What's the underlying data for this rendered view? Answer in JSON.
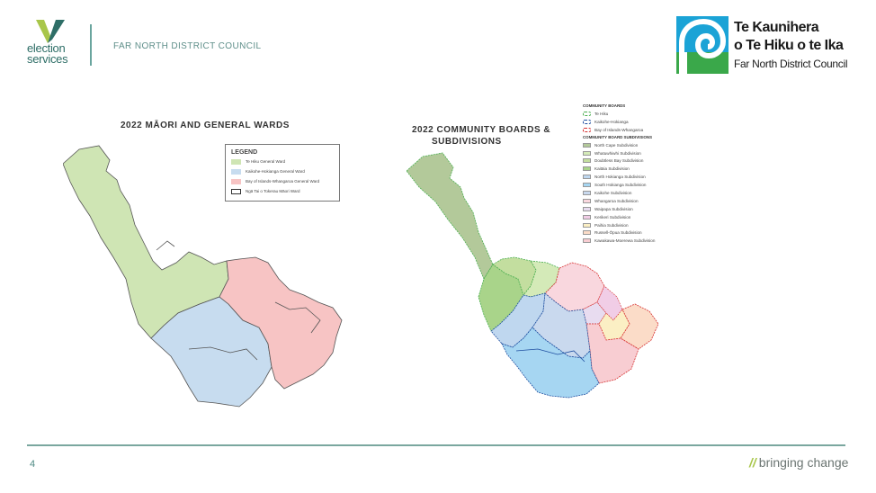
{
  "header": {
    "logo_text": "election\nservices",
    "council_name": "FAR NORTH DISTRICT COUNCIL",
    "fndc_line1": "Te Kaunihera",
    "fndc_line2": "o Te Hiku o te Ika",
    "fndc_line3": "Far North District Council"
  },
  "map1": {
    "title": "2022 MĀORI AND GENERAL WARDS",
    "legend_title": "LEGEND",
    "legend": [
      {
        "label": "Te Hiku General Ward",
        "color": "#cfe5b4"
      },
      {
        "label": "Kaikohe-Hokianga General Ward",
        "color": "#c7dcef"
      },
      {
        "label": "Bay of Islands-Whangaroa General Ward",
        "color": "#f7c4c4"
      },
      {
        "label": "Ngā Tai o Tokerau Māori Ward",
        "color": "#ffffff"
      }
    ]
  },
  "map2": {
    "title_line1": "2022 COMMUNITY BOARDS &",
    "title_line2": "SUBDIVISIONS",
    "boards_heading": "COMMUNITY BOARDS",
    "boards": [
      {
        "label": "Te Hiku",
        "color": "#4caf50"
      },
      {
        "label": "Kaikohe-Hokianga",
        "color": "#1f4fa0"
      },
      {
        "label": "Bay of Islands-Whangaroa",
        "color": "#d63030"
      }
    ],
    "subdivisions_heading": "COMMUNITY BOARD SUBDIVISIONS",
    "subdivisions": [
      {
        "label": "North Cape Subdivision",
        "color": "#b3c99a"
      },
      {
        "label": "Whatuwhiwhi Subdivision",
        "color": "#d4eab8"
      },
      {
        "label": "Doubtless Bay Subdivision",
        "color": "#c3de9f"
      },
      {
        "label": "Kaitāia Subdivision",
        "color": "#a9d48a"
      },
      {
        "label": "North Hokianga Subdivision",
        "color": "#bfd7ef"
      },
      {
        "label": "South Hokianga Subdivision",
        "color": "#a6d6f2"
      },
      {
        "label": "Kaikohe Subdivision",
        "color": "#c9d9ee"
      },
      {
        "label": "Whangaroa Subdivision",
        "color": "#f9d7de"
      },
      {
        "label": "Waipapa Subdivision",
        "color": "#e8dcf0"
      },
      {
        "label": "Kerikeri Subdivision",
        "color": "#f1cde6"
      },
      {
        "label": "Paihia Subdivision",
        "color": "#fbefc4"
      },
      {
        "label": "Russell-Ōpua Subdivision",
        "color": "#fbdcc8"
      },
      {
        "label": "Kawakawa-Moerewa Subdivision",
        "color": "#f8cdd2"
      }
    ]
  },
  "footer": {
    "page_number": "4",
    "tagline_mark": "//",
    "tagline": "bringing change"
  }
}
